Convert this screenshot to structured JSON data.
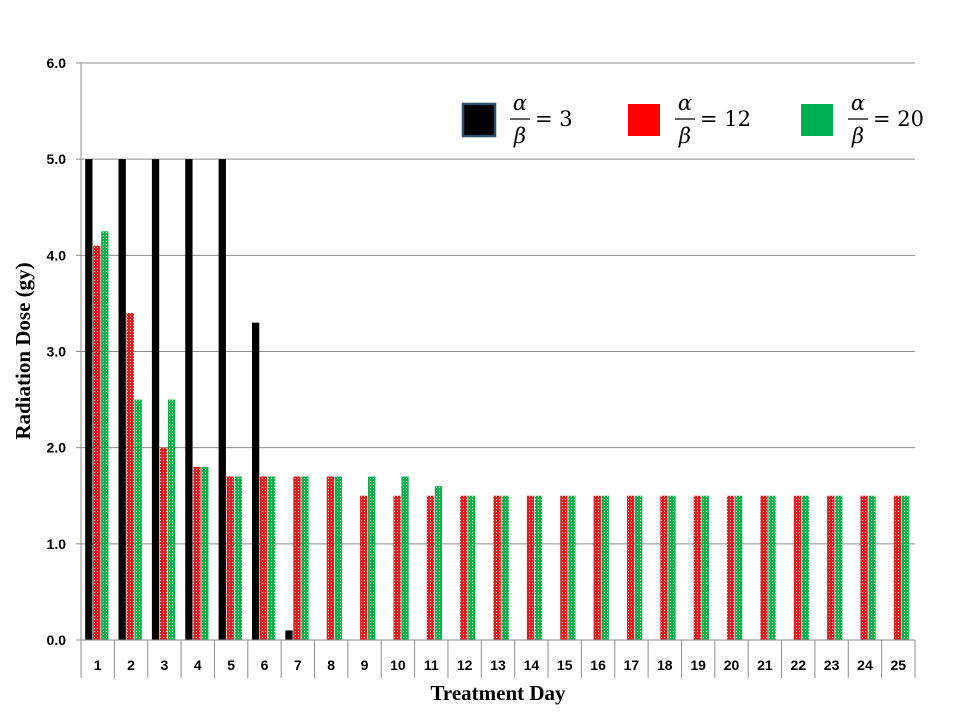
{
  "chart_data": {
    "type": "bar",
    "xlabel": "Treatment Day",
    "ylabel": "Radiation Dose (gy)",
    "ylim": [
      0,
      6.0
    ],
    "yticks": [
      "0.0",
      "1.0",
      "2.0",
      "3.0",
      "4.0",
      "5.0",
      "6.0"
    ],
    "grid": true,
    "legend_position": "top-right",
    "categories": [
      "1",
      "2",
      "3",
      "4",
      "5",
      "6",
      "7",
      "8",
      "9",
      "10",
      "11",
      "12",
      "13",
      "14",
      "15",
      "16",
      "17",
      "18",
      "19",
      "20",
      "21",
      "22",
      "23",
      "24",
      "25"
    ],
    "series": [
      {
        "legend_numerator": "α",
        "legend_denominator": "β",
        "legend_value": "= 3",
        "color": "#000000",
        "legend_border": "#2E4A6E",
        "pattern": "solid",
        "values": [
          5.0,
          5.0,
          5.0,
          5.0,
          5.0,
          3.3,
          0.1,
          0,
          0,
          0,
          0,
          0,
          0,
          0,
          0,
          0,
          0,
          0,
          0,
          0,
          0,
          0,
          0,
          0,
          0
        ]
      },
      {
        "legend_numerator": "α",
        "legend_denominator": "β",
        "legend_value": "= 12",
        "color": "#E11B22",
        "pattern": "dotted",
        "values": [
          4.1,
          3.4,
          2.0,
          1.8,
          1.7,
          1.7,
          1.7,
          1.7,
          1.5,
          1.5,
          1.5,
          1.5,
          1.5,
          1.5,
          1.5,
          1.5,
          1.5,
          1.5,
          1.5,
          1.5,
          1.5,
          1.5,
          1.5,
          1.5,
          1.5
        ]
      },
      {
        "legend_numerator": "α",
        "legend_denominator": "β",
        "legend_value": "= 20",
        "color": "#0DB04B",
        "pattern": "dotted",
        "values": [
          4.25,
          2.5,
          2.5,
          1.8,
          1.7,
          1.7,
          1.7,
          1.7,
          1.7,
          1.7,
          1.6,
          1.5,
          1.5,
          1.5,
          1.5,
          1.5,
          1.5,
          1.5,
          1.5,
          1.5,
          1.5,
          1.5,
          1.5,
          1.5,
          1.5
        ]
      }
    ]
  }
}
